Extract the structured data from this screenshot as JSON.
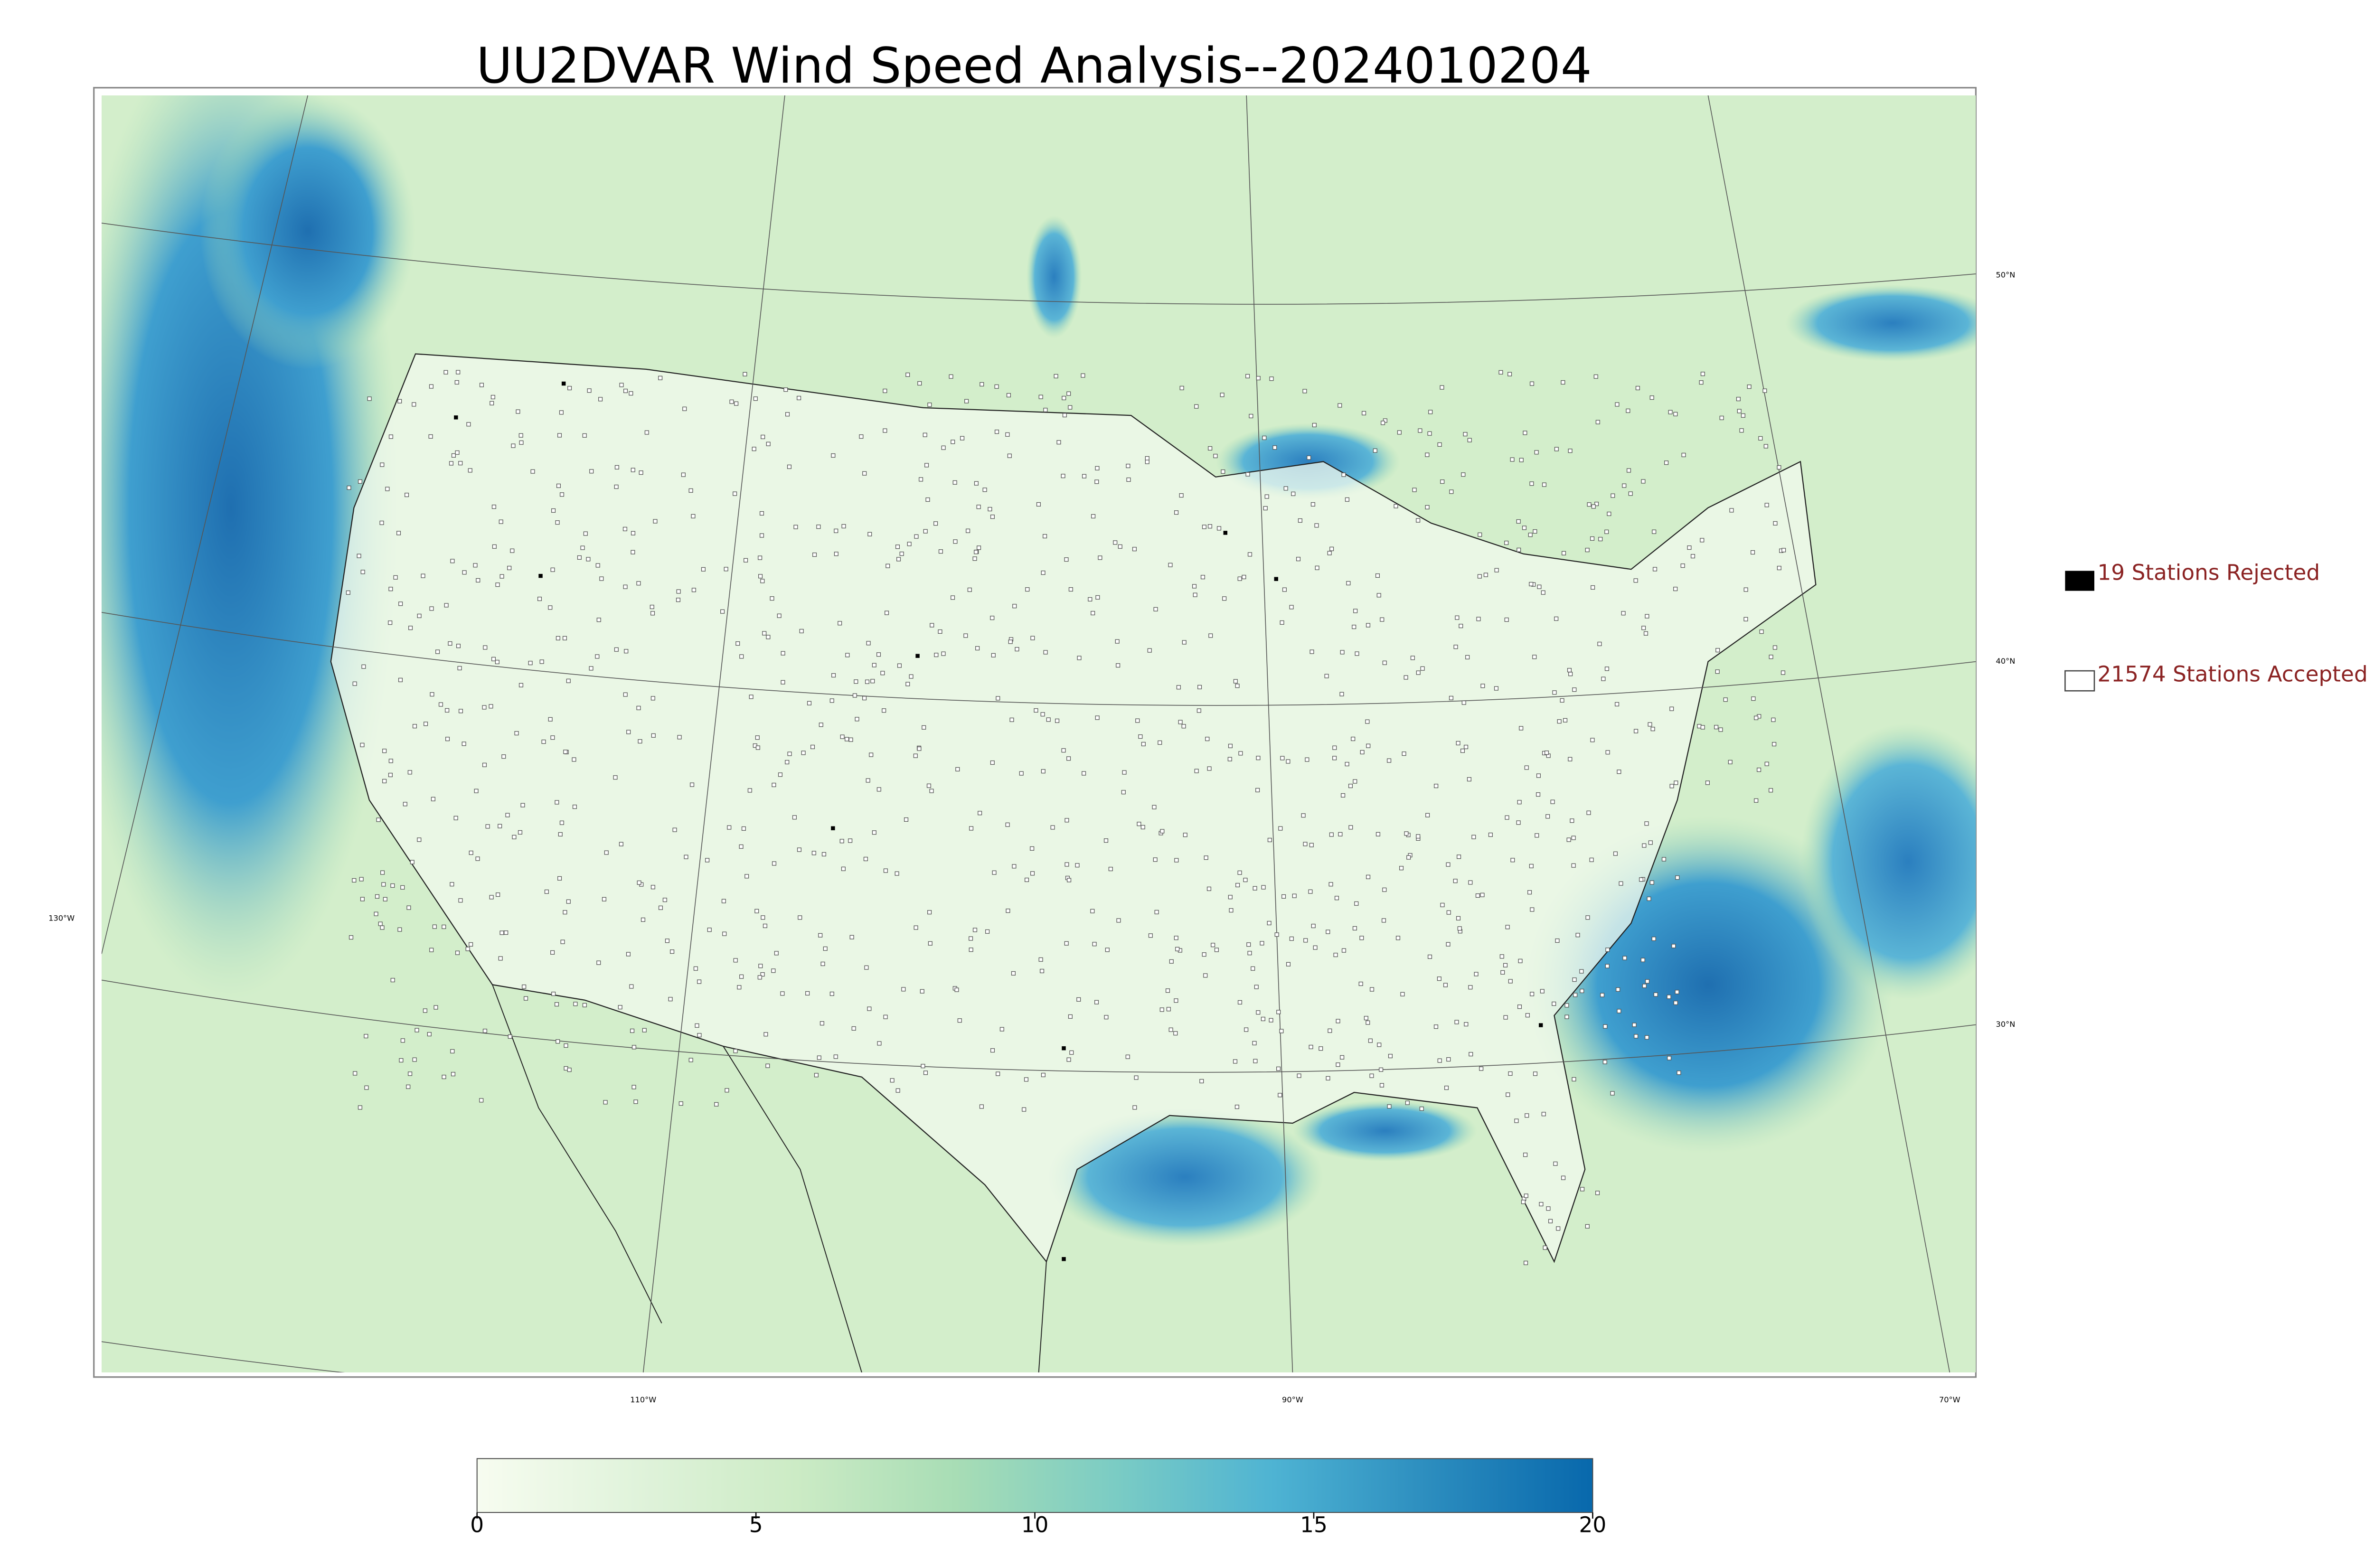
{
  "map": {
    "title": "UU2DVAR Wind Speed Analysis--2024010204",
    "latitude_labels": [
      "50°N",
      "40°N",
      "30°N"
    ],
    "longitude_labels": [
      "130°W",
      "110°W",
      "90°W",
      "70°W"
    ],
    "legend": [
      "19 Stations Rejected",
      "21574 Stations Accepted"
    ],
    "colorbar": {
      "range": [
        0,
        20
      ],
      "ticks": [
        0,
        5,
        10,
        15,
        20
      ],
      "colors": [
        "#f7fcf0",
        "#e0f3db",
        "#ccebc5",
        "#a8ddb5",
        "#7bccc4",
        "#4eb3d3",
        "#2b8cbe",
        "#0868ac"
      ]
    }
  }
}
